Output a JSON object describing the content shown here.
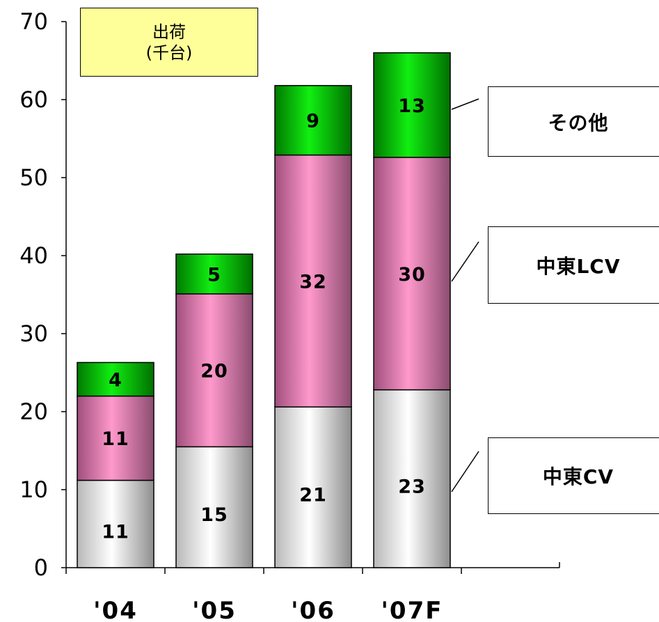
{
  "unit_label": {
    "line1": "出荷",
    "line2": "(千台)"
  },
  "legend": [
    {
      "key": "other",
      "label": "その他"
    },
    {
      "key": "lcv",
      "label": "中東LCV"
    },
    {
      "key": "cv",
      "label": "中東CV"
    }
  ],
  "chart_data": {
    "type": "bar",
    "stacked": true,
    "categories": [
      "'04",
      "'05",
      "'06",
      "'07F"
    ],
    "series": [
      {
        "name": "中東CV",
        "values": [
          11,
          15,
          21,
          23
        ],
        "labels": [
          "11",
          "15",
          "21",
          "23"
        ],
        "color": "#d0d0d0"
      },
      {
        "name": "中東LCV",
        "values": [
          11,
          20,
          32,
          30
        ],
        "labels": [
          "11",
          "20",
          "32",
          "30"
        ],
        "color": "#ff99cc"
      },
      {
        "name": "その他",
        "values": [
          4,
          5,
          9,
          13
        ],
        "labels": [
          "4",
          "5",
          "9",
          "13"
        ],
        "color": "#00cc00"
      }
    ],
    "totals": [
      26.3,
      40.2,
      61.8,
      66
    ],
    "segment_tops": [
      [
        11.2,
        22,
        26.3
      ],
      [
        15.5,
        35.1,
        40.2
      ],
      [
        20.6,
        52.9,
        61.8
      ],
      [
        22.8,
        52.6,
        66
      ]
    ],
    "y_ticks": [
      "0",
      "10",
      "20",
      "30",
      "40",
      "50",
      "60",
      "70"
    ],
    "ylim": [
      0,
      70
    ],
    "grid": false
  },
  "colors": {
    "cv": "#d0d0d0",
    "lcv": "#ff99cc",
    "other": "#00cc00"
  }
}
